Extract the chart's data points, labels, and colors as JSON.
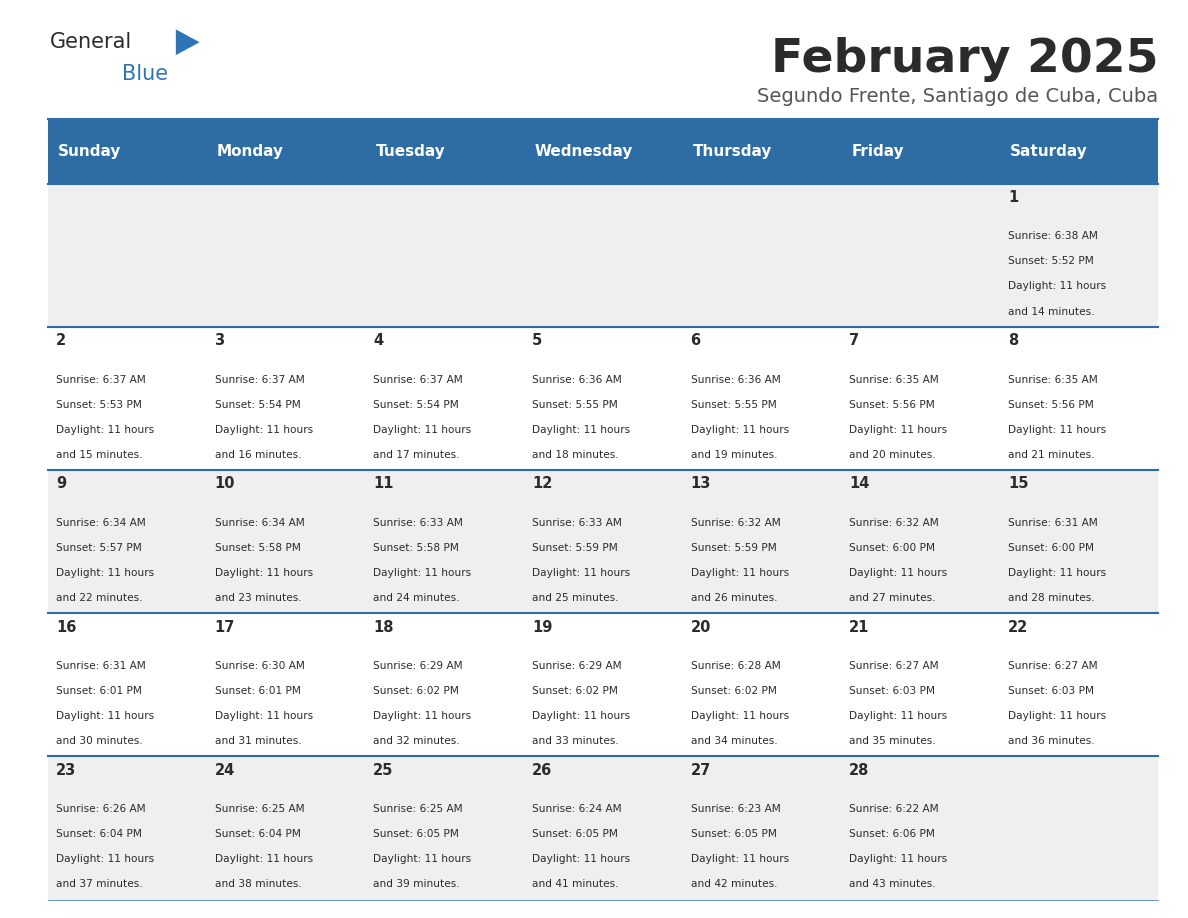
{
  "title": "February 2025",
  "subtitle": "Segundo Frente, Santiago de Cuba, Cuba",
  "header_color": "#2E6DA4",
  "header_text_color": "#FFFFFF",
  "days_of_week": [
    "Sunday",
    "Monday",
    "Tuesday",
    "Wednesday",
    "Thursday",
    "Friday",
    "Saturday"
  ],
  "bg_color": "#FFFFFF",
  "divider_color": "#2E6DA4",
  "text_color": "#333333",
  "calendar_data": [
    {
      "day": 1,
      "col": 6,
      "row": 0,
      "sunrise": "6:38 AM",
      "sunset": "5:52 PM",
      "daylight_hours": 11,
      "daylight_minutes": 14
    },
    {
      "day": 2,
      "col": 0,
      "row": 1,
      "sunrise": "6:37 AM",
      "sunset": "5:53 PM",
      "daylight_hours": 11,
      "daylight_minutes": 15
    },
    {
      "day": 3,
      "col": 1,
      "row": 1,
      "sunrise": "6:37 AM",
      "sunset": "5:54 PM",
      "daylight_hours": 11,
      "daylight_minutes": 16
    },
    {
      "day": 4,
      "col": 2,
      "row": 1,
      "sunrise": "6:37 AM",
      "sunset": "5:54 PM",
      "daylight_hours": 11,
      "daylight_minutes": 17
    },
    {
      "day": 5,
      "col": 3,
      "row": 1,
      "sunrise": "6:36 AM",
      "sunset": "5:55 PM",
      "daylight_hours": 11,
      "daylight_minutes": 18
    },
    {
      "day": 6,
      "col": 4,
      "row": 1,
      "sunrise": "6:36 AM",
      "sunset": "5:55 PM",
      "daylight_hours": 11,
      "daylight_minutes": 19
    },
    {
      "day": 7,
      "col": 5,
      "row": 1,
      "sunrise": "6:35 AM",
      "sunset": "5:56 PM",
      "daylight_hours": 11,
      "daylight_minutes": 20
    },
    {
      "day": 8,
      "col": 6,
      "row": 1,
      "sunrise": "6:35 AM",
      "sunset": "5:56 PM",
      "daylight_hours": 11,
      "daylight_minutes": 21
    },
    {
      "day": 9,
      "col": 0,
      "row": 2,
      "sunrise": "6:34 AM",
      "sunset": "5:57 PM",
      "daylight_hours": 11,
      "daylight_minutes": 22
    },
    {
      "day": 10,
      "col": 1,
      "row": 2,
      "sunrise": "6:34 AM",
      "sunset": "5:58 PM",
      "daylight_hours": 11,
      "daylight_minutes": 23
    },
    {
      "day": 11,
      "col": 2,
      "row": 2,
      "sunrise": "6:33 AM",
      "sunset": "5:58 PM",
      "daylight_hours": 11,
      "daylight_minutes": 24
    },
    {
      "day": 12,
      "col": 3,
      "row": 2,
      "sunrise": "6:33 AM",
      "sunset": "5:59 PM",
      "daylight_hours": 11,
      "daylight_minutes": 25
    },
    {
      "day": 13,
      "col": 4,
      "row": 2,
      "sunrise": "6:32 AM",
      "sunset": "5:59 PM",
      "daylight_hours": 11,
      "daylight_minutes": 26
    },
    {
      "day": 14,
      "col": 5,
      "row": 2,
      "sunrise": "6:32 AM",
      "sunset": "6:00 PM",
      "daylight_hours": 11,
      "daylight_minutes": 27
    },
    {
      "day": 15,
      "col": 6,
      "row": 2,
      "sunrise": "6:31 AM",
      "sunset": "6:00 PM",
      "daylight_hours": 11,
      "daylight_minutes": 28
    },
    {
      "day": 16,
      "col": 0,
      "row": 3,
      "sunrise": "6:31 AM",
      "sunset": "6:01 PM",
      "daylight_hours": 11,
      "daylight_minutes": 30
    },
    {
      "day": 17,
      "col": 1,
      "row": 3,
      "sunrise": "6:30 AM",
      "sunset": "6:01 PM",
      "daylight_hours": 11,
      "daylight_minutes": 31
    },
    {
      "day": 18,
      "col": 2,
      "row": 3,
      "sunrise": "6:29 AM",
      "sunset": "6:02 PM",
      "daylight_hours": 11,
      "daylight_minutes": 32
    },
    {
      "day": 19,
      "col": 3,
      "row": 3,
      "sunrise": "6:29 AM",
      "sunset": "6:02 PM",
      "daylight_hours": 11,
      "daylight_minutes": 33
    },
    {
      "day": 20,
      "col": 4,
      "row": 3,
      "sunrise": "6:28 AM",
      "sunset": "6:02 PM",
      "daylight_hours": 11,
      "daylight_minutes": 34
    },
    {
      "day": 21,
      "col": 5,
      "row": 3,
      "sunrise": "6:27 AM",
      "sunset": "6:03 PM",
      "daylight_hours": 11,
      "daylight_minutes": 35
    },
    {
      "day": 22,
      "col": 6,
      "row": 3,
      "sunrise": "6:27 AM",
      "sunset": "6:03 PM",
      "daylight_hours": 11,
      "daylight_minutes": 36
    },
    {
      "day": 23,
      "col": 0,
      "row": 4,
      "sunrise": "6:26 AM",
      "sunset": "6:04 PM",
      "daylight_hours": 11,
      "daylight_minutes": 37
    },
    {
      "day": 24,
      "col": 1,
      "row": 4,
      "sunrise": "6:25 AM",
      "sunset": "6:04 PM",
      "daylight_hours": 11,
      "daylight_minutes": 38
    },
    {
      "day": 25,
      "col": 2,
      "row": 4,
      "sunrise": "6:25 AM",
      "sunset": "6:05 PM",
      "daylight_hours": 11,
      "daylight_minutes": 39
    },
    {
      "day": 26,
      "col": 3,
      "row": 4,
      "sunrise": "6:24 AM",
      "sunset": "6:05 PM",
      "daylight_hours": 11,
      "daylight_minutes": 41
    },
    {
      "day": 27,
      "col": 4,
      "row": 4,
      "sunrise": "6:23 AM",
      "sunset": "6:05 PM",
      "daylight_hours": 11,
      "daylight_minutes": 42
    },
    {
      "day": 28,
      "col": 5,
      "row": 4,
      "sunrise": "6:22 AM",
      "sunset": "6:06 PM",
      "daylight_hours": 11,
      "daylight_minutes": 43
    }
  ]
}
